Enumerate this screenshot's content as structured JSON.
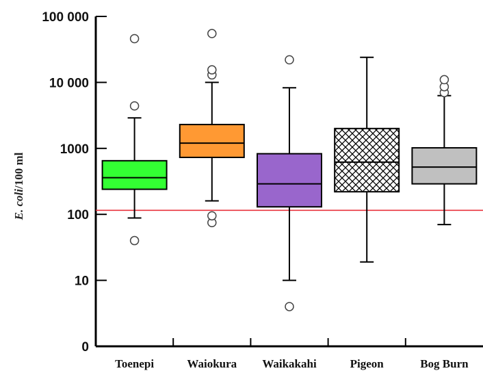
{
  "chart_data": {
    "type": "box",
    "title": "",
    "xlabel": "",
    "ylabel": {
      "italic": "E. coli",
      "rest": "/100 ml"
    },
    "scale": "log",
    "ylim": [
      1,
      100000
    ],
    "y_ticks": [
      {
        "value": 1,
        "label": "0"
      },
      {
        "value": 10,
        "label": "10"
      },
      {
        "value": 100,
        "label": "100"
      },
      {
        "value": 1000,
        "label": "1000"
      },
      {
        "value": 10000,
        "label": "10 000"
      },
      {
        "value": 100000,
        "label": "100 000"
      }
    ],
    "reference_line": {
      "value": 115,
      "color": "#e8323c"
    },
    "grid": false,
    "legend": "none",
    "series": [
      {
        "category": "Toenepi",
        "fill": "#33ff33",
        "pattern": "solid",
        "whisker_low": 88,
        "q1": 240,
        "median": 360,
        "q3": 650,
        "whisker_high": 2900,
        "outliers": [
          40,
          4400,
          46000
        ]
      },
      {
        "category": "Waiokura",
        "fill": "#ff9933",
        "pattern": "solid",
        "whisker_low": 160,
        "q1": 730,
        "median": 1200,
        "q3": 2300,
        "whisker_high": 10000,
        "outliers": [
          75,
          95,
          13000,
          15500,
          55000
        ]
      },
      {
        "category": "Waikakahi",
        "fill": "#9966cc",
        "pattern": "solid",
        "whisker_low": 10,
        "q1": 130,
        "median": 290,
        "q3": 830,
        "whisker_high": 8300,
        "outliers": [
          4,
          22000
        ]
      },
      {
        "category": "Pigeon",
        "fill": "#ffffff",
        "pattern": "crosshatch",
        "whisker_low": 19,
        "q1": 220,
        "median": 620,
        "q3": 2000,
        "whisker_high": 24000,
        "outliers": []
      },
      {
        "category": "Bog Burn",
        "fill": "#c0c0c0",
        "pattern": "solid",
        "whisker_low": 70,
        "q1": 290,
        "median": 520,
        "q3": 1020,
        "whisker_high": 6300,
        "outliers": [
          7000,
          8600,
          11000
        ]
      }
    ]
  }
}
